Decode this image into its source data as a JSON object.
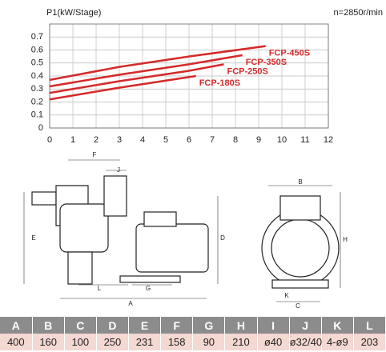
{
  "chart_data": {
    "type": "line",
    "title": "P1(kW/Stage)",
    "annotation": "n=2850r/min",
    "xlim": [
      0,
      12
    ],
    "xticks": [
      0,
      1,
      2,
      3,
      4,
      5,
      6,
      7,
      8,
      9,
      10,
      11,
      12
    ],
    "ylim": [
      0,
      0.8
    ],
    "yticks": [
      0,
      0.1,
      0.2,
      0.3,
      0.4,
      0.5,
      0.6,
      0.7
    ],
    "grid": true,
    "series": [
      {
        "name": "FCP-450S",
        "color": "#d42a2a",
        "x": [
          0,
          3,
          6,
          9.3
        ],
        "values": [
          0.37,
          0.47,
          0.55,
          0.63
        ]
      },
      {
        "name": "FCP-350S",
        "color": "#d42a2a",
        "x": [
          0,
          3,
          6,
          8.3
        ],
        "values": [
          0.32,
          0.41,
          0.49,
          0.56
        ]
      },
      {
        "name": "FCP-250S",
        "color": "#d42a2a",
        "x": [
          0,
          3,
          6,
          7.5
        ],
        "values": [
          0.27,
          0.36,
          0.44,
          0.49
        ]
      },
      {
        "name": "FCP-180S",
        "color": "#d42a2a",
        "x": [
          0,
          3,
          6.3
        ],
        "values": [
          0.22,
          0.31,
          0.4
        ]
      }
    ]
  },
  "drawing": {
    "side_labels": [
      "F",
      "J",
      "E",
      "D",
      "L",
      "G",
      "A"
    ],
    "front_labels": [
      "B",
      "H",
      "K",
      "C"
    ]
  },
  "table": {
    "header": [
      "A",
      "B",
      "C",
      "D",
      "E",
      "F",
      "G",
      "H",
      "I",
      "J",
      "K",
      "L"
    ],
    "rows": [
      [
        "400",
        "160",
        "100",
        "250",
        "231",
        "158",
        "90",
        "210",
        "ø40",
        "ø32/40",
        "4-ø9",
        "203"
      ]
    ]
  }
}
